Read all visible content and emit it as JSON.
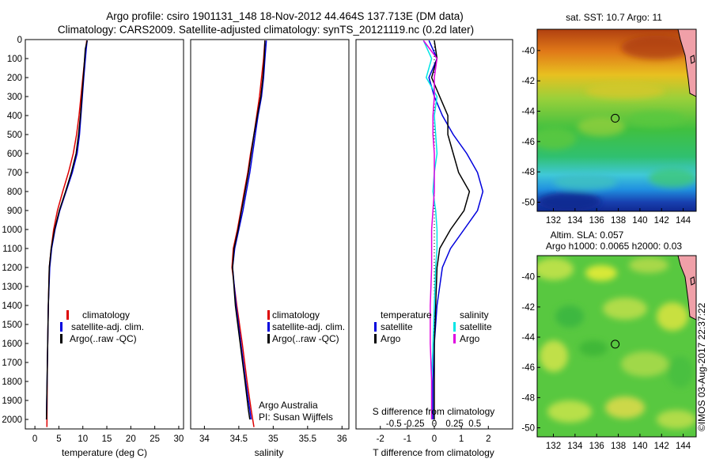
{
  "header": {
    "line1": "Argo profile: csiro 1901131_148 18-Nov-2012 44.464S 137.713E (DM data)",
    "line2": "Climatology: CARS2009. Satellite-adjusted climatology: synTS_20121119.nc (0.2d later)"
  },
  "credit": "©IMOS 03-Aug-2017 22:37:22",
  "colors": {
    "climatology": "#dd0000",
    "satellite": "#0000dd",
    "argo": "#000000",
    "salinity_satellite": "#00e5e5",
    "salinity_argo": "#e000e0"
  },
  "chart_data": [
    {
      "type": "line",
      "id": "temperature",
      "xlabel": "temperature (deg C)",
      "ylabel": "",
      "xlim": [
        -2,
        31
      ],
      "ylim": [
        2050,
        0
      ],
      "y_reversed": true,
      "xticks": [
        0,
        5,
        10,
        15,
        20,
        25,
        30
      ],
      "yticks": [
        0,
        100,
        200,
        300,
        400,
        500,
        600,
        700,
        800,
        900,
        1000,
        1100,
        1200,
        1300,
        1400,
        1500,
        1600,
        1700,
        1800,
        1900,
        2000
      ],
      "legend": [
        "climatology",
        "satellite-adj. clim.",
        "Argo(..raw -QC)"
      ],
      "legend_position": "lower-middle",
      "series": [
        {
          "name": "climatology",
          "color": "#dd0000",
          "x": [
            10.8,
            10.6,
            10.0,
            9.6,
            9.2,
            8.7,
            8.0,
            7.0,
            5.8,
            4.7,
            3.9,
            3.4,
            3.0,
            2.8,
            2.6,
            2.5
          ],
          "y": [
            5,
            50,
            200,
            300,
            400,
            500,
            600,
            700,
            800,
            900,
            1000,
            1100,
            1200,
            1400,
            1700,
            2040
          ]
        },
        {
          "name": "satellite-adj. clim.",
          "color": "#0000dd",
          "x": [
            10.9,
            10.7,
            10.2,
            9.9,
            9.6,
            9.3,
            8.8,
            7.8,
            6.5,
            5.2,
            4.2,
            3.5,
            3.1,
            2.8,
            2.6,
            2.4
          ],
          "y": [
            5,
            50,
            200,
            300,
            400,
            500,
            600,
            700,
            800,
            900,
            1000,
            1100,
            1200,
            1400,
            1700,
            2000
          ]
        },
        {
          "name": "Argo(..raw -QC)",
          "color": "#000000",
          "x": [
            10.9,
            10.5,
            10.1,
            9.8,
            9.5,
            9.1,
            8.6,
            7.6,
            6.4,
            5.1,
            4.1,
            3.4,
            3.0,
            2.8,
            2.6,
            2.4
          ],
          "y": [
            5,
            50,
            200,
            300,
            400,
            500,
            600,
            700,
            800,
            900,
            1000,
            1100,
            1200,
            1400,
            1700,
            2000
          ]
        }
      ]
    },
    {
      "type": "line",
      "id": "salinity",
      "xlabel": "salinity",
      "ylabel": "",
      "xlim": [
        33.8,
        36.1
      ],
      "ylim": [
        2050,
        0
      ],
      "y_reversed": true,
      "xticks": [
        34,
        34.5,
        35,
        35.5,
        36
      ],
      "legend": [
        "climatology",
        "satellite-adj. clim.",
        "Argo(..raw -QC)"
      ],
      "legend_position": "lower-middle",
      "annotation": [
        "Argo Australia",
        "PI: Susan Wijffels"
      ],
      "series": [
        {
          "name": "climatology",
          "color": "#dd0000",
          "x": [
            34.88,
            34.86,
            34.83,
            34.8,
            34.76,
            34.72,
            34.67,
            34.63,
            34.58,
            34.53,
            34.48,
            34.42,
            34.4,
            34.47,
            34.55,
            34.62,
            34.68,
            34.72
          ],
          "y": [
            5,
            100,
            200,
            300,
            400,
            500,
            600,
            700,
            800,
            900,
            1000,
            1100,
            1200,
            1400,
            1600,
            1800,
            1950,
            2040
          ]
        },
        {
          "name": "satellite-adj. clim.",
          "color": "#0000dd",
          "x": [
            34.9,
            34.88,
            34.86,
            34.83,
            34.78,
            34.74,
            34.7,
            34.66,
            34.61,
            34.56,
            34.5,
            34.44,
            34.41,
            34.46,
            34.53,
            34.6,
            34.66,
            34.68
          ],
          "y": [
            5,
            100,
            200,
            300,
            400,
            500,
            600,
            700,
            800,
            900,
            1000,
            1100,
            1200,
            1400,
            1600,
            1800,
            1950,
            2000
          ]
        },
        {
          "name": "Argo(..raw -QC)",
          "color": "#000000",
          "x": [
            34.88,
            34.87,
            34.85,
            34.82,
            34.77,
            34.72,
            34.68,
            34.64,
            34.59,
            34.54,
            34.49,
            34.43,
            34.41,
            34.45,
            34.52,
            34.59,
            34.64,
            34.66
          ],
          "y": [
            5,
            100,
            200,
            300,
            400,
            500,
            600,
            700,
            800,
            900,
            1000,
            1100,
            1200,
            1400,
            1600,
            1800,
            1950,
            2000
          ]
        }
      ]
    },
    {
      "type": "line",
      "id": "difference",
      "xlabel": "T difference from climatology",
      "xlabel_top": "S difference from climatology",
      "xlim": [
        -2.9,
        2.9
      ],
      "ylim": [
        2050,
        0
      ],
      "y_reversed": true,
      "xticks": [
        -2,
        -1,
        0,
        1,
        2
      ],
      "xticks_salinity": [
        "-0.5",
        "-0.25",
        "0",
        "0.25",
        "0.5"
      ],
      "legend_headers": [
        "temperature",
        "salinity"
      ],
      "legend": [
        "satellite",
        "Argo",
        "satellite",
        "Argo"
      ],
      "legend_position": "lower-middle",
      "series": [
        {
          "name": "temperature satellite",
          "color": "#0000dd",
          "x": [
            -0.2,
            0.1,
            -0.2,
            0.0,
            0.3,
            0.7,
            1.2,
            1.6,
            1.8,
            1.6,
            1.1,
            0.6,
            0.3,
            0.1,
            0.0,
            -0.05,
            -0.05
          ],
          "y": [
            5,
            100,
            200,
            300,
            400,
            500,
            600,
            700,
            800,
            900,
            1000,
            1100,
            1200,
            1400,
            1600,
            1800,
            2000
          ]
        },
        {
          "name": "temperature Argo",
          "color": "#000000",
          "x": [
            0.0,
            0.1,
            -0.1,
            0.2,
            0.5,
            0.5,
            0.7,
            0.9,
            1.3,
            1.1,
            0.6,
            0.2,
            0.1,
            0.05,
            0.0,
            0.0,
            0.0
          ],
          "y": [
            5,
            100,
            200,
            300,
            400,
            500,
            600,
            700,
            800,
            900,
            1000,
            1100,
            1200,
            1400,
            1600,
            1800,
            2000
          ]
        },
        {
          "name": "salinity satellite",
          "color": "#00e5e5",
          "x": [
            -0.4,
            -0.1,
            -0.3,
            0.1,
            0.0,
            0.05,
            0.1,
            0.0,
            -0.05,
            0.05,
            0.1,
            0.1,
            0.05,
            0.0,
            -0.05,
            -0.1,
            -0.1
          ],
          "y": [
            5,
            100,
            200,
            300,
            400,
            500,
            600,
            700,
            800,
            900,
            1000,
            1100,
            1200,
            1400,
            1600,
            1800,
            2000
          ]
        },
        {
          "name": "salinity Argo",
          "color": "#e000e0",
          "x": [
            -0.4,
            0.1,
            0.0,
            0.0,
            -0.05,
            -0.05,
            0.0,
            0.0,
            0.0,
            -0.05,
            -0.1,
            -0.1,
            -0.1,
            -0.15,
            -0.15,
            -0.1,
            -0.1
          ],
          "y": [
            5,
            100,
            200,
            300,
            400,
            500,
            600,
            700,
            800,
            900,
            1000,
            1100,
            1200,
            1400,
            1600,
            1800,
            2000
          ]
        }
      ]
    },
    {
      "type": "heatmap",
      "id": "sst_map",
      "title": "sat. SST: 10.7 Argo: 11",
      "xlim": [
        130.5,
        145.2
      ],
      "ylim": [
        -50.6,
        -38.6
      ],
      "xticks": [
        132,
        134,
        136,
        138,
        140,
        142,
        144
      ],
      "yticks": [
        -40,
        -42,
        -44,
        -46,
        -48,
        -50
      ],
      "colormap": "jet",
      "argo_position": [
        137.713,
        -44.464
      ]
    },
    {
      "type": "heatmap",
      "id": "sla_map",
      "title_lines": [
        "Altim. SLA: 0.057",
        "Argo h1000: 0.0065 h2000: 0.03"
      ],
      "xlim": [
        130.5,
        145.2
      ],
      "ylim": [
        -50.6,
        -38.6
      ],
      "xticks": [
        132,
        134,
        136,
        138,
        140,
        142,
        144
      ],
      "yticks": [
        -40,
        -42,
        -44,
        -46,
        -48,
        -50
      ],
      "colormap": "jet",
      "argo_position": [
        137.713,
        -44.464
      ]
    }
  ]
}
